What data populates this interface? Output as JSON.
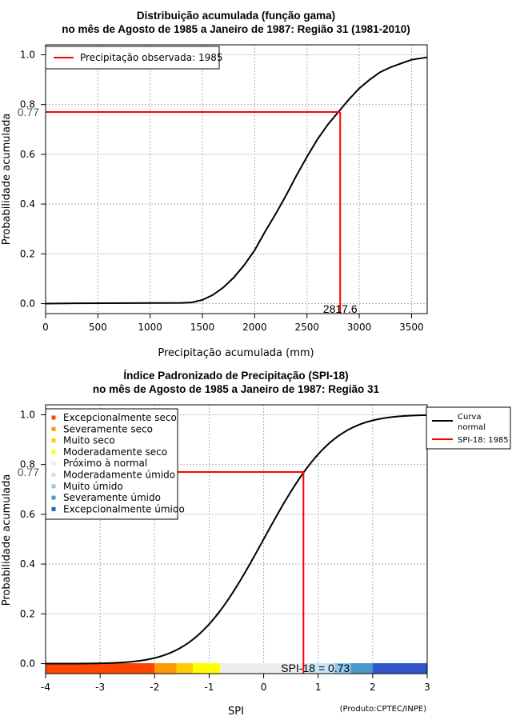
{
  "chart_data": [
    {
      "type": "line",
      "title_line1": "Distribuição acumulada (função gama)",
      "title_line2": "no mês de Agosto de 1985 a Janeiro de 1987: Região 31 (1981-2010)",
      "xlabel": "Precipitação acumulada (mm)",
      "ylabel": "Probabilidade acumulada",
      "xlim": [
        0,
        3650
      ],
      "ylim": [
        -0.04,
        1.04
      ],
      "xticks": [
        0,
        500,
        1000,
        1500,
        2000,
        2500,
        3000,
        3500
      ],
      "xtick_labels": [
        "0",
        "500",
        "1000",
        "1500",
        "2000",
        "2500",
        "3000",
        "3500"
      ],
      "yticks": [
        0,
        0.2,
        0.4,
        0.6,
        0.8,
        1.0
      ],
      "ytick_labels": [
        "0.0",
        "0.2",
        "0.4",
        "0.6",
        "0.8",
        "1.0"
      ],
      "grid": true,
      "legend": {
        "position": "top-left",
        "entries": [
          {
            "label": "Precipitação observada: 1985",
            "color": "#ff0000"
          }
        ]
      },
      "curve": {
        "name": "Gamma CDF",
        "color": "#000000",
        "x": [
          0,
          300,
          800,
          1300,
          1400,
          1500,
          1600,
          1700,
          1800,
          1900,
          2000,
          2100,
          2200,
          2300,
          2400,
          2500,
          2600,
          2700,
          2800,
          2900,
          3000,
          3100,
          3200,
          3300,
          3400,
          3500,
          3650
        ],
        "y": [
          0,
          0.0015,
          0.002,
          0.003,
          0.005,
          0.015,
          0.035,
          0.065,
          0.105,
          0.155,
          0.215,
          0.29,
          0.36,
          0.435,
          0.515,
          0.59,
          0.66,
          0.72,
          0.77,
          0.82,
          0.865,
          0.9,
          0.93,
          0.95,
          0.965,
          0.98,
          0.99
        ]
      },
      "observed": {
        "x": 2817.6,
        "y": 0.77,
        "color": "#ff0000",
        "x_label": "2817.6",
        "y_label": "0.77"
      }
    },
    {
      "type": "line",
      "title_line1": "Índice Padronizado de Precipitação (SPI-18)",
      "title_line2": "no mês de Agosto de 1985 a Janeiro de 1987: Região 31",
      "xlabel": "SPI",
      "ylabel": "Probabilidade acumulada",
      "xlim": [
        -4,
        3
      ],
      "ylim": [
        -0.04,
        1.04
      ],
      "xticks": [
        -4,
        -3,
        -2,
        -1,
        0,
        1,
        2,
        3
      ],
      "xtick_labels": [
        "-4",
        "-3",
        "-2",
        "-1",
        "0",
        "1",
        "2",
        "3"
      ],
      "yticks": [
        0,
        0.2,
        0.4,
        0.6,
        0.8,
        1.0
      ],
      "ytick_labels": [
        "0.0",
        "0.2",
        "0.4",
        "0.6",
        "0.8",
        "1.0"
      ],
      "grid": true,
      "categories_legend": [
        {
          "label": "Excepcionalmente seco",
          "color": "#ff4500"
        },
        {
          "label": "Severamente seco",
          "color": "#ff9900"
        },
        {
          "label": "Muito seco",
          "color": "#ffcc00"
        },
        {
          "label": "Moderadamente seco",
          "color": "#ffff00"
        },
        {
          "label": "Próximo à normal",
          "color": "#eeeeee"
        },
        {
          "label": "Moderadamente úmido",
          "color": "#c8e6f8"
        },
        {
          "label": "Muito úmido",
          "color": "#8ec8f0"
        },
        {
          "label": "Severamente úmido",
          "color": "#4c96c8"
        },
        {
          "label": "Excepcionalmente úmido",
          "color": "#3355cc"
        }
      ],
      "bands": [
        {
          "from": -4,
          "to": -2,
          "color": "#ff4500"
        },
        {
          "from": -2,
          "to": -1.6,
          "color": "#ff9900"
        },
        {
          "from": -1.6,
          "to": -1.3,
          "color": "#ffcc00"
        },
        {
          "from": -1.3,
          "to": -0.8,
          "color": "#ffff00"
        },
        {
          "from": -0.8,
          "to": 0.8,
          "color": "#eeeeee"
        },
        {
          "from": 0.8,
          "to": 1.3,
          "color": "#c8e6f8"
        },
        {
          "from": 1.3,
          "to": 1.6,
          "color": "#8ec8f0"
        },
        {
          "from": 1.6,
          "to": 2,
          "color": "#4c96c8"
        },
        {
          "from": 2,
          "to": 3,
          "color": "#3355cc"
        }
      ],
      "series_legend": [
        {
          "label": "Curva\nnormal",
          "line1": "Curva",
          "line2": "normal",
          "color": "#000000"
        },
        {
          "label": "SPI-18: 1985",
          "color": "#ff0000"
        }
      ],
      "observed": {
        "x": 0.73,
        "y": 0.77,
        "color": "#ff0000",
        "label": "SPI-18 = 0.73",
        "y_label": "0.77"
      },
      "footer": "(Produto:CPTEC/INPE)"
    }
  ]
}
